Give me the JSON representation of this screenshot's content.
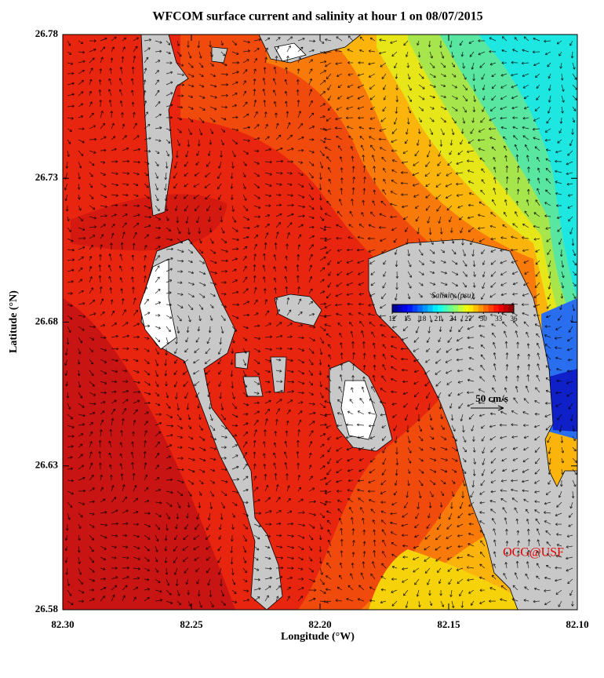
{
  "title": "WFCOM surface current and salinity at hour 1 on 08/07/2015",
  "x_axis": {
    "label": "Longitude (°W)",
    "lim": [
      82.3,
      82.1
    ],
    "ticks": [
      {
        "value": 82.3,
        "label": "82.30"
      },
      {
        "value": 82.25,
        "label": "82.25"
      },
      {
        "value": 82.2,
        "label": "82.20"
      },
      {
        "value": 82.15,
        "label": "82.15"
      },
      {
        "value": 82.1,
        "label": "82.10"
      }
    ]
  },
  "y_axis": {
    "label": "Latitude (°N)",
    "lim": [
      26.58,
      26.78
    ],
    "ticks": [
      26.58,
      26.63,
      26.68,
      26.73,
      26.78
    ]
  },
  "colorbar": {
    "title": "Salinity (psu)",
    "lim": [
      12,
      36
    ],
    "ticks": [
      12,
      15,
      18,
      21,
      24,
      27,
      30,
      33,
      36
    ]
  },
  "scale_arrow": "50 cm/s",
  "credit": "OCG@USF"
}
